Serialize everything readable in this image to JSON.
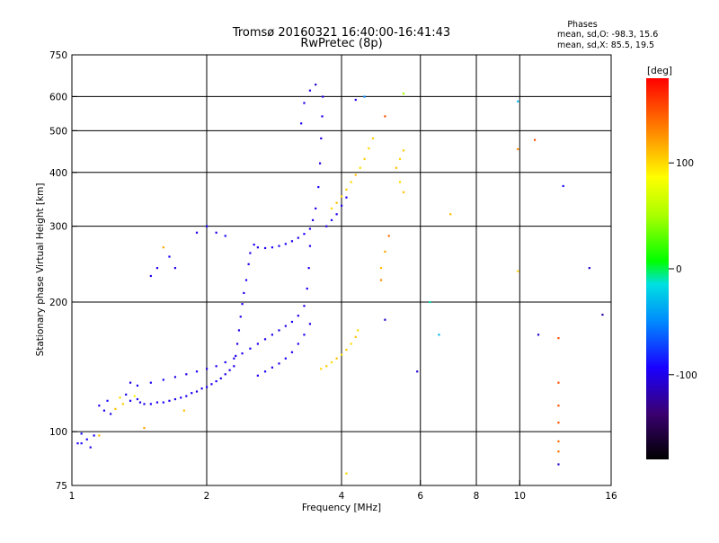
{
  "chart_data": {
    "type": "scatter",
    "title": "Tromsø 20160321 16:40:00-16:41:43",
    "subtitle": "RwPretec (8p)",
    "xlabel": "Frequency [MHz]",
    "ylabel": "Stationary phase Virtual Height [km]",
    "x_scale": "log",
    "y_scale": "log",
    "xlim": [
      1,
      16
    ],
    "ylim": [
      75,
      750
    ],
    "x_ticks": [
      1,
      2,
      4,
      6,
      8,
      10,
      16
    ],
    "y_ticks": [
      75,
      100,
      200,
      300,
      400,
      500,
      600,
      750
    ],
    "x_grid": [
      2,
      4,
      6,
      8,
      10
    ],
    "y_grid": [
      100,
      200,
      300,
      400,
      500,
      600
    ],
    "grid": true,
    "stats": {
      "heading": "Phases",
      "line_o": "mean, sd,O: -98.3, 15.6",
      "line_x": "mean, sd,X:  85.5, 19.5"
    },
    "colorbar": {
      "label": "[deg]",
      "range": [
        -180,
        180
      ],
      "ticks": [
        100,
        0,
        -100
      ]
    },
    "series": [
      {
        "description_ref": "phase-coloured echoes",
        "points": [
          [
            1.03,
            94,
            -95
          ],
          [
            1.05,
            99,
            -90
          ],
          [
            1.08,
            96,
            -95
          ],
          [
            1.1,
            92,
            -100
          ],
          [
            1.12,
            98,
            -95
          ],
          [
            1.15,
            115,
            -100
          ],
          [
            1.18,
            112,
            -95
          ],
          [
            1.2,
            118,
            -90
          ],
          [
            1.22,
            110,
            -100
          ],
          [
            1.25,
            113,
            110
          ],
          [
            1.28,
            120,
            100
          ],
          [
            1.3,
            116,
            105
          ],
          [
            1.32,
            122,
            -100
          ],
          [
            1.35,
            118,
            -95
          ],
          [
            1.38,
            121,
            90
          ],
          [
            1.4,
            119,
            -95
          ],
          [
            1.42,
            117,
            -100
          ],
          [
            1.45,
            116,
            -100
          ],
          [
            1.5,
            116,
            -95
          ],
          [
            1.55,
            117,
            -100
          ],
          [
            1.6,
            117,
            -95
          ],
          [
            1.65,
            118,
            -100
          ],
          [
            1.7,
            119,
            -100
          ],
          [
            1.75,
            120,
            -95
          ],
          [
            1.8,
            121,
            -100
          ],
          [
            1.85,
            123,
            -95
          ],
          [
            1.9,
            124,
            -100
          ],
          [
            1.95,
            126,
            -100
          ],
          [
            2.0,
            127,
            -95
          ],
          [
            2.05,
            129,
            -100
          ],
          [
            2.1,
            131,
            -95
          ],
          [
            2.15,
            133,
            -100
          ],
          [
            2.2,
            136,
            -100
          ],
          [
            2.25,
            139,
            -95
          ],
          [
            2.3,
            142,
            -100
          ],
          [
            2.32,
            150,
            -100
          ],
          [
            2.34,
            160,
            -100
          ],
          [
            2.36,
            172,
            -100
          ],
          [
            2.38,
            185,
            -100
          ],
          [
            2.4,
            198,
            -100
          ],
          [
            2.42,
            210,
            -100
          ],
          [
            2.45,
            225,
            -95
          ],
          [
            2.48,
            245,
            -100
          ],
          [
            2.5,
            260,
            -100
          ],
          [
            2.55,
            272,
            -95
          ],
          [
            2.6,
            268,
            -100
          ],
          [
            2.7,
            267,
            -100
          ],
          [
            2.8,
            268,
            -95
          ],
          [
            2.9,
            270,
            -100
          ],
          [
            3.0,
            273,
            -95
          ],
          [
            3.1,
            277,
            -100
          ],
          [
            3.2,
            282,
            -100
          ],
          [
            3.3,
            288,
            -95
          ],
          [
            3.4,
            296,
            -100
          ],
          [
            3.45,
            310,
            -100
          ],
          [
            3.5,
            330,
            -100
          ],
          [
            3.55,
            370,
            -95
          ],
          [
            3.58,
            420,
            -100
          ],
          [
            3.6,
            480,
            -100
          ],
          [
            3.62,
            540,
            -100
          ],
          [
            3.63,
            600,
            -100
          ],
          [
            3.5,
            640,
            -110
          ],
          [
            3.4,
            620,
            -100
          ],
          [
            3.3,
            580,
            -100
          ],
          [
            3.25,
            520,
            -95
          ],
          [
            1.35,
            130,
            -100
          ],
          [
            1.4,
            128,
            -95
          ],
          [
            1.5,
            130,
            -100
          ],
          [
            1.6,
            132,
            -95
          ],
          [
            1.7,
            134,
            -100
          ],
          [
            1.8,
            136,
            -100
          ],
          [
            1.9,
            138,
            -95
          ],
          [
            2.0,
            140,
            -100
          ],
          [
            2.1,
            142,
            -100
          ],
          [
            2.2,
            145,
            -95
          ],
          [
            2.3,
            148,
            -100
          ],
          [
            2.4,
            152,
            -100
          ],
          [
            2.5,
            156,
            -95
          ],
          [
            2.6,
            160,
            -100
          ],
          [
            2.7,
            164,
            -100
          ],
          [
            2.8,
            168,
            -95
          ],
          [
            2.9,
            172,
            -100
          ],
          [
            3.0,
            176,
            -100
          ],
          [
            3.1,
            180,
            -95
          ],
          [
            3.2,
            186,
            -100
          ],
          [
            3.3,
            196,
            -100
          ],
          [
            3.35,
            215,
            -95
          ],
          [
            3.38,
            240,
            -100
          ],
          [
            3.4,
            270,
            -100
          ],
          [
            2.6,
            135,
            -100
          ],
          [
            2.7,
            138,
            -95
          ],
          [
            2.8,
            141,
            -100
          ],
          [
            2.9,
            144,
            -100
          ],
          [
            3.0,
            148,
            -95
          ],
          [
            3.1,
            153,
            -100
          ],
          [
            3.2,
            160,
            -100
          ],
          [
            3.3,
            168,
            -95
          ],
          [
            3.4,
            178,
            -100
          ],
          [
            3.6,
            140,
            100
          ],
          [
            3.7,
            142,
            105
          ],
          [
            3.8,
            145,
            100
          ],
          [
            3.9,
            148,
            110
          ],
          [
            4.0,
            151,
            100
          ],
          [
            4.1,
            155,
            105
          ],
          [
            4.2,
            160,
            100
          ],
          [
            4.3,
            166,
            110
          ],
          [
            4.35,
            172,
            100
          ],
          [
            3.8,
            330,
            100
          ],
          [
            3.9,
            340,
            110
          ],
          [
            4.0,
            352,
            100
          ],
          [
            4.1,
            365,
            105
          ],
          [
            4.2,
            380,
            100
          ],
          [
            4.3,
            395,
            110
          ],
          [
            4.4,
            410,
            100
          ],
          [
            4.5,
            430,
            105
          ],
          [
            4.6,
            455,
            100
          ],
          [
            4.7,
            480,
            105
          ],
          [
            3.7,
            300,
            -100
          ],
          [
            3.8,
            310,
            -95
          ],
          [
            3.9,
            320,
            -100
          ],
          [
            4.0,
            335,
            -100
          ],
          [
            4.1,
            350,
            -95
          ],
          [
            5.3,
            410,
            110
          ],
          [
            5.4,
            430,
            100
          ],
          [
            5.5,
            450,
            105
          ],
          [
            5.4,
            380,
            100
          ],
          [
            5.5,
            360,
            110
          ],
          [
            4.3,
            590,
            -100
          ],
          [
            4.5,
            600,
            -50
          ],
          [
            5.0,
            540,
            150
          ],
          [
            5.5,
            610,
            50
          ],
          [
            1.7,
            240,
            -100
          ],
          [
            1.65,
            255,
            -95
          ],
          [
            1.6,
            268,
            120
          ],
          [
            1.55,
            240,
            -100
          ],
          [
            1.5,
            230,
            -100
          ],
          [
            1.9,
            290,
            -100
          ],
          [
            2.0,
            300,
            -95
          ],
          [
            2.1,
            290,
            -100
          ],
          [
            2.2,
            285,
            -95
          ],
          [
            1.45,
            102,
            120
          ],
          [
            1.78,
            112,
            110
          ],
          [
            1.15,
            98,
            110
          ],
          [
            1.05,
            94,
            -90
          ],
          [
            9.9,
            585,
            -30
          ],
          [
            9.9,
            453,
            130
          ],
          [
            10.8,
            476,
            150
          ],
          [
            12.5,
            372,
            -90
          ],
          [
            14.3,
            240,
            -110
          ],
          [
            15.3,
            187,
            -120
          ],
          [
            11.0,
            168,
            -110
          ],
          [
            12.2,
            165,
            150
          ],
          [
            12.2,
            130,
            150
          ],
          [
            12.2,
            115,
            150
          ],
          [
            12.2,
            105,
            150
          ],
          [
            12.2,
            95,
            140
          ],
          [
            12.2,
            90,
            140
          ],
          [
            12.2,
            84,
            -110
          ],
          [
            4.9,
            225,
            130
          ],
          [
            4.9,
            240,
            110
          ],
          [
            5.0,
            262,
            120
          ],
          [
            5.1,
            285,
            140
          ],
          [
            5.0,
            182,
            -110
          ],
          [
            5.9,
            138,
            -110
          ],
          [
            6.6,
            168,
            -30
          ],
          [
            7.0,
            320,
            110
          ],
          [
            9.9,
            236,
            100
          ],
          [
            4.1,
            80,
            100
          ],
          [
            6.3,
            200,
            -10
          ]
        ]
      }
    ]
  }
}
